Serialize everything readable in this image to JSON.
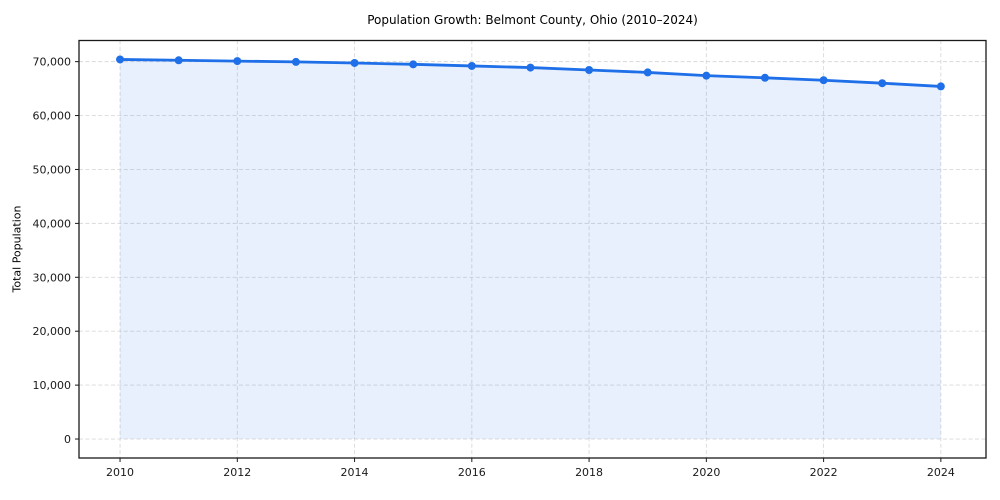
{
  "chart_data": {
    "type": "area",
    "title": "Population Growth: Belmont County, Ohio (2010–2024)",
    "xlabel": "",
    "ylabel": "Total Population",
    "x": [
      2010,
      2011,
      2012,
      2013,
      2014,
      2015,
      2016,
      2017,
      2018,
      2019,
      2020,
      2021,
      2022,
      2023,
      2024
    ],
    "values": [
      70400,
      70250,
      70100,
      69950,
      69750,
      69500,
      69200,
      68900,
      68450,
      68000,
      67400,
      67000,
      66550,
      66000,
      65400
    ],
    "x_ticks": [
      2010,
      2012,
      2014,
      2016,
      2018,
      2020,
      2022,
      2024
    ],
    "x_tick_labels": [
      "2010",
      "2012",
      "2014",
      "2016",
      "2018",
      "2020",
      "2022",
      "2024"
    ],
    "y_ticks": [
      0,
      10000,
      20000,
      30000,
      40000,
      50000,
      60000,
      70000
    ],
    "y_tick_labels": [
      "0",
      "10,000",
      "20,000",
      "30,000",
      "40,000",
      "50,000",
      "60,000",
      "70,000"
    ],
    "xlim": [
      2009.3,
      2024.77
    ],
    "ylim": [
      -3520,
      73920
    ],
    "grid": true,
    "legend": "none",
    "colors": {
      "line": "#1f6fe8",
      "marker": "#1f6fe8",
      "fill": "#1f6fe8",
      "fill_opacity": "0.10",
      "grid": "#d9d9d9",
      "spine": "#1a1a1a",
      "tick_text": "#1a1a1a",
      "background": "#ffffff"
    }
  }
}
